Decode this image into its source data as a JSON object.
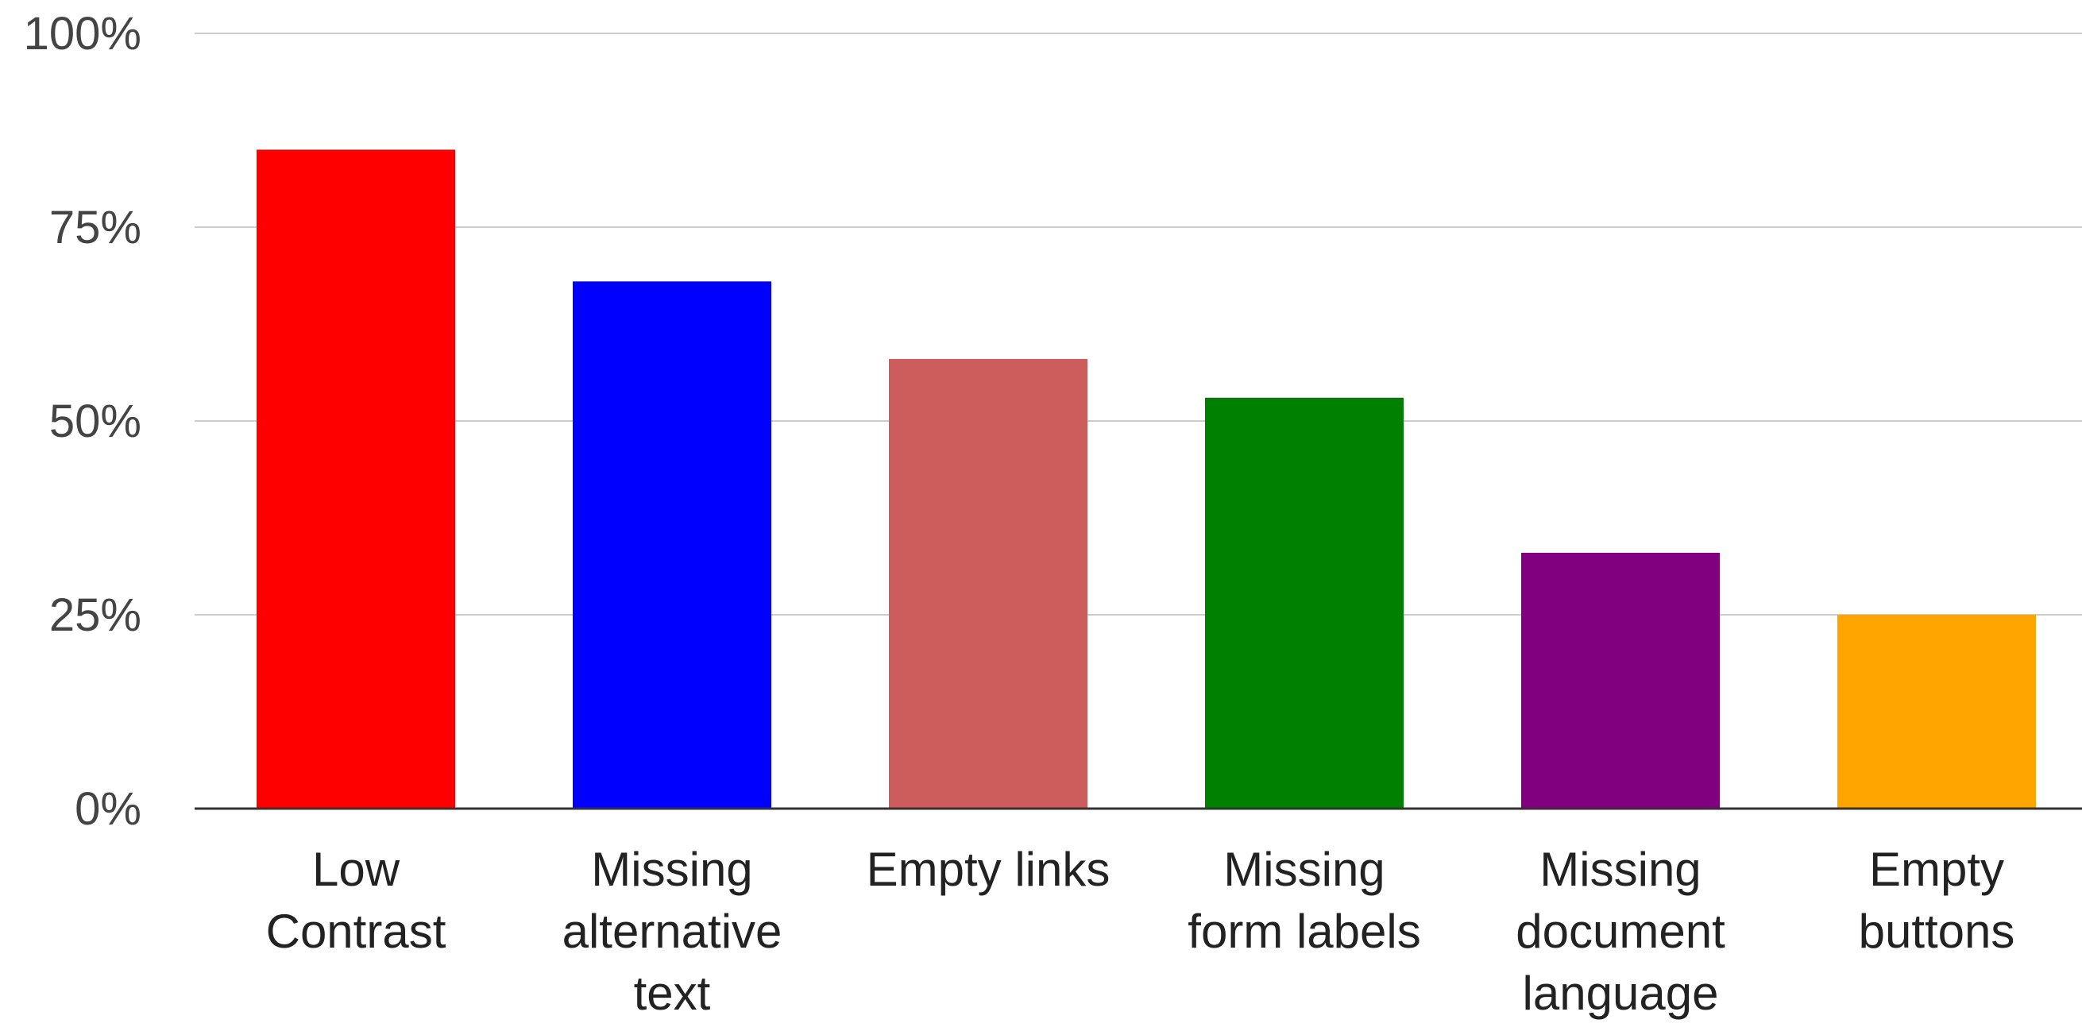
{
  "chart_data": {
    "type": "bar",
    "categories": [
      [
        "Low",
        "Contrast"
      ],
      [
        "Missing",
        "alternative",
        "text"
      ],
      [
        "Empty links"
      ],
      [
        "Missing",
        "form labels"
      ],
      [
        "Missing",
        "document",
        "language"
      ],
      [
        "Empty",
        "buttons"
      ]
    ],
    "values": [
      85,
      68,
      58,
      53,
      33,
      25
    ],
    "colors": [
      "#ff0000",
      "#0000ff",
      "#cd5c5c",
      "#008000",
      "#800080",
      "#ffa500"
    ],
    "yticks": [
      "0%",
      "25%",
      "50%",
      "75%",
      "100%"
    ],
    "ytick_values": [
      0,
      25,
      50,
      75,
      100
    ],
    "ylim": [
      0,
      100
    ],
    "title": "",
    "xlabel": "",
    "ylabel": "",
    "grid": true,
    "legend": "none"
  }
}
